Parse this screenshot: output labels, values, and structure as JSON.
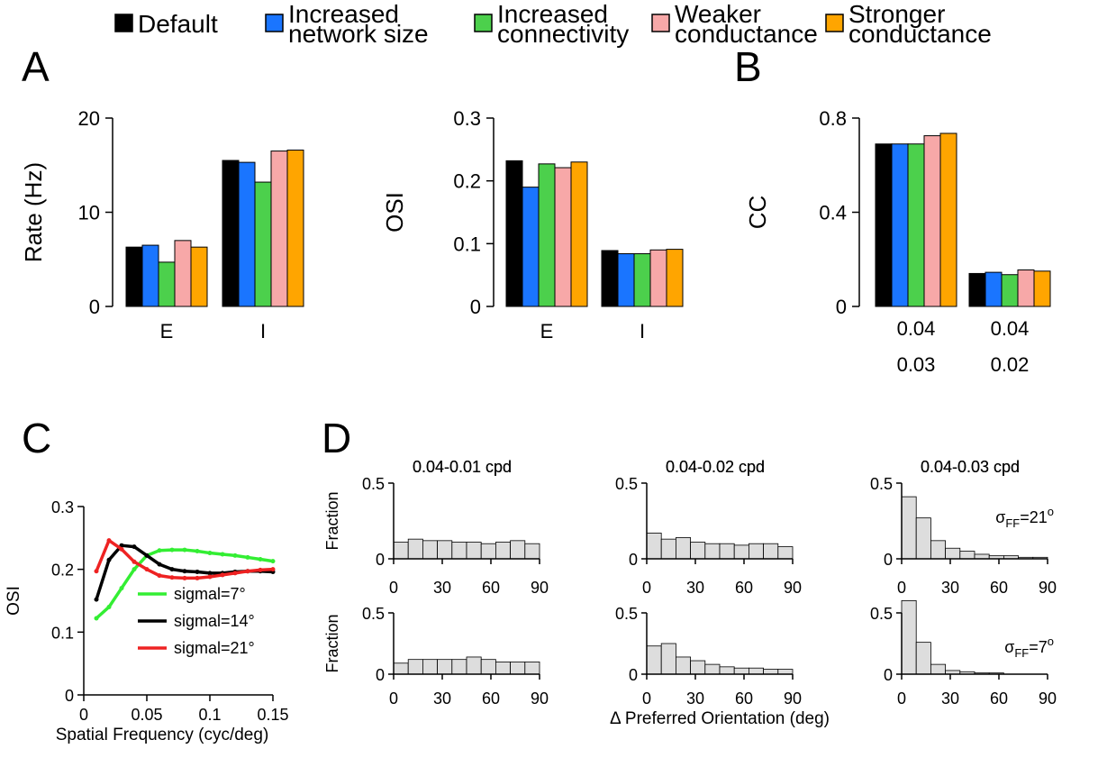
{
  "colors": {
    "default": "#000000",
    "increased_network_size": "#1a75ff",
    "increased_connectivity": "#4cd04c",
    "weaker_conductance": "#f7a8a8",
    "stronger_conductance": "#ffa500",
    "sigma7": "#33ee33",
    "sigma14": "#000000",
    "sigma21": "#ee2222",
    "hist_fill": "#dddddd"
  },
  "legend": {
    "default": "Default",
    "increased_network_size": [
      "Increased",
      "network size"
    ],
    "increased_connectivity": [
      "Increased",
      "connectivity"
    ],
    "weaker_conductance": [
      "Weaker",
      "conductance"
    ],
    "stronger_conductance": [
      "Stronger",
      "conductance"
    ]
  },
  "panels": {
    "A": "A",
    "B": "B",
    "C": "C",
    "D": "D"
  },
  "chart_data": [
    {
      "panel": "A",
      "type": "bar",
      "ylabel": "Rate (Hz)",
      "ylim": [
        0,
        20
      ],
      "yticks": [
        "0",
        "10",
        "20"
      ],
      "categories": [
        "E",
        "I"
      ],
      "series": [
        {
          "key": "default",
          "values": [
            6.3,
            15.5
          ]
        },
        {
          "key": "increased_network_size",
          "values": [
            6.5,
            15.3
          ]
        },
        {
          "key": "increased_connectivity",
          "values": [
            4.7,
            13.2
          ]
        },
        {
          "key": "weaker_conductance",
          "values": [
            7.0,
            16.5
          ]
        },
        {
          "key": "stronger_conductance",
          "values": [
            6.3,
            16.6
          ]
        }
      ]
    },
    {
      "panel": "A",
      "type": "bar",
      "ylabel": "OSI",
      "ylim": [
        0,
        0.3
      ],
      "yticks": [
        "0",
        "0.1",
        "0.2",
        "0.3"
      ],
      "categories": [
        "E",
        "I"
      ],
      "series": [
        {
          "key": "default",
          "values": [
            0.232,
            0.089
          ]
        },
        {
          "key": "increased_network_size",
          "values": [
            0.19,
            0.084
          ]
        },
        {
          "key": "increased_connectivity",
          "values": [
            0.227,
            0.084
          ]
        },
        {
          "key": "weaker_conductance",
          "values": [
            0.221,
            0.09
          ]
        },
        {
          "key": "stronger_conductance",
          "values": [
            0.23,
            0.091
          ]
        }
      ]
    },
    {
      "panel": "B",
      "type": "bar",
      "ylabel": "CC",
      "ylim": [
        0,
        0.8
      ],
      "yticks": [
        "0",
        "0.4",
        "0.8"
      ],
      "categories": [
        [
          "0.04",
          "0.03"
        ],
        [
          "0.04",
          "0.02"
        ]
      ],
      "series": [
        {
          "key": "default",
          "values": [
            0.69,
            0.14
          ]
        },
        {
          "key": "increased_network_size",
          "values": [
            0.69,
            0.145
          ]
        },
        {
          "key": "increased_connectivity",
          "values": [
            0.69,
            0.135
          ]
        },
        {
          "key": "weaker_conductance",
          "values": [
            0.725,
            0.155
          ]
        },
        {
          "key": "stronger_conductance",
          "values": [
            0.735,
            0.15
          ]
        }
      ]
    },
    {
      "panel": "C",
      "type": "line",
      "xlabel": "Spatial Frequency (cyc/deg)",
      "ylabel": "OSI",
      "xlim": [
        0,
        0.15
      ],
      "ylim": [
        0,
        0.3
      ],
      "xticks": [
        "0",
        "0.05",
        "0.1",
        "0.15"
      ],
      "yticks": [
        "0",
        "0.1",
        "0.2",
        "0.3"
      ],
      "x": [
        0.01,
        0.02,
        0.03,
        0.04,
        0.05,
        0.06,
        0.07,
        0.08,
        0.09,
        0.1,
        0.11,
        0.12,
        0.13,
        0.14,
        0.15
      ],
      "series": [
        {
          "name": "sigmal=7°",
          "color_key": "sigma7",
          "values": [
            0.122,
            0.14,
            0.17,
            0.2,
            0.222,
            0.23,
            0.231,
            0.231,
            0.229,
            0.226,
            0.224,
            0.222,
            0.219,
            0.216,
            0.213
          ]
        },
        {
          "name": "sigmal=14°",
          "color_key": "sigma14",
          "values": [
            0.152,
            0.215,
            0.238,
            0.236,
            0.222,
            0.208,
            0.2,
            0.197,
            0.196,
            0.194,
            0.194,
            0.196,
            0.197,
            0.197,
            0.196
          ]
        },
        {
          "name": "sigmal=21°",
          "color_key": "sigma21",
          "values": [
            0.197,
            0.246,
            0.232,
            0.212,
            0.2,
            0.19,
            0.187,
            0.186,
            0.186,
            0.188,
            0.191,
            0.194,
            0.197,
            0.199,
            0.2
          ]
        }
      ]
    },
    {
      "panel": "D",
      "type": "bar",
      "subtype": "histogram",
      "xlabel": "Δ Preferred Orientation (deg)",
      "ylabel": "Fraction",
      "xlim": [
        0,
        90
      ],
      "ylim": [
        0,
        0.5
      ],
      "xticks": [
        "0",
        "30",
        "60",
        "90"
      ],
      "yticks": [
        "0",
        "0.5"
      ],
      "bin_edges": [
        0,
        9,
        18,
        27,
        36,
        45,
        54,
        63,
        72,
        81,
        90
      ],
      "col_titles": [
        "0.04-0.01 cpd",
        "0.04-0.02 cpd",
        "0.04-0.03 cpd"
      ],
      "rows": [
        {
          "sigma_base": "σ",
          "sigma_sub": "FF",
          "sigma_rest": "=21",
          "sigma_sup": "o",
          "hists": [
            [
              0.11,
              0.13,
              0.12,
              0.12,
              0.11,
              0.11,
              0.1,
              0.11,
              0.12,
              0.1
            ],
            [
              0.17,
              0.13,
              0.14,
              0.11,
              0.1,
              0.1,
              0.09,
              0.1,
              0.1,
              0.08
            ],
            [
              0.41,
              0.27,
              0.12,
              0.07,
              0.05,
              0.03,
              0.02,
              0.02,
              0.01,
              0.01
            ]
          ]
        },
        {
          "sigma_base": "σ",
          "sigma_sub": "FF",
          "sigma_rest": "=7",
          "sigma_sup": "o",
          "hists": [
            [
              0.09,
              0.12,
              0.12,
              0.12,
              0.12,
              0.14,
              0.12,
              0.1,
              0.1,
              0.1
            ],
            [
              0.23,
              0.25,
              0.14,
              0.11,
              0.08,
              0.06,
              0.05,
              0.05,
              0.04,
              0.04
            ],
            [
              0.6,
              0.26,
              0.08,
              0.03,
              0.02,
              0.01,
              0.01,
              0.0,
              0.0,
              0.0
            ]
          ]
        }
      ]
    }
  ]
}
